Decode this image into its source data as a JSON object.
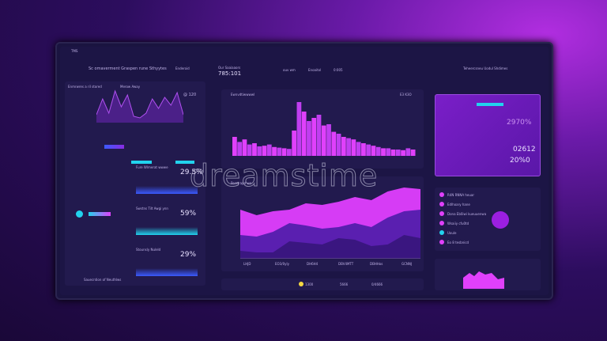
{
  "window": {
    "title": "TMS"
  },
  "header": {
    "title": "Sc omaverment Graspen rune Sthyytes",
    "select": "Enderoid",
    "stat_title": "Our Saaiaaors",
    "stat_value": "785:101",
    "kpis": [
      "ouv wm",
      "Enoaitol",
      "0:005"
    ]
  },
  "left": {
    "chart_title": "Enmrwres a ril stored",
    "chart_sub": "Merow Away",
    "value": "@ 120",
    "bottom_label": "Sauecntion of Neuthlws"
  },
  "cards": [
    {
      "title": "Fure Wlmerat wwwe",
      "value": "29.5%"
    },
    {
      "title": "Swstns Tilt Awgi ynn",
      "value": "59%"
    },
    {
      "title": "Stounsly Nuleld",
      "value": "29%"
    }
  ],
  "main": {
    "chart1_title": "Ewnvdtiwwwwl",
    "chart1_value": "E3 K3O",
    "chart2_title": "Perstrapd wn",
    "x_ticks": [
      "LHJD",
      "EO3/0yly",
      "DH6H4",
      "DBV4MTT",
      "DBHHos",
      "GCNNJ"
    ],
    "footer": [
      "1300",
      "5666",
      "0/4666"
    ]
  },
  "right": {
    "title": "Teheercsneu Uodul Shdimes",
    "card_values": [
      "02612",
      "20%0",
      "2970%"
    ],
    "list": [
      "R4N RNNA heuar",
      "Edlhoary hane",
      "Dona Eb0iwi kueuuenwa",
      "Wsaiiy cfu0td",
      "Uoule",
      "Eo 8 tesbnicd"
    ]
  },
  "watermark": "dreamstime",
  "chart_data": {
    "type": "area",
    "bars": [
      30,
      22,
      26,
      18,
      20,
      15,
      16,
      18,
      14,
      13,
      12,
      11,
      40,
      85,
      70,
      55,
      60,
      65,
      48,
      50,
      38,
      35,
      30,
      28,
      26,
      22,
      20,
      18,
      16,
      14,
      12,
      12,
      10,
      10,
      9,
      12,
      10
    ],
    "area_series": [
      [
        62,
        55,
        60,
        62,
        70,
        68,
        72,
        78,
        74,
        85,
        90,
        88
      ],
      [
        30,
        28,
        34,
        45,
        42,
        38,
        40,
        45,
        40,
        52,
        60,
        62
      ],
      [
        10,
        8,
        8,
        22,
        20,
        18,
        26,
        24,
        16,
        18,
        30,
        26
      ]
    ],
    "left_line": [
      10,
      30,
      12,
      40,
      20,
      35,
      8,
      6,
      12,
      30,
      18,
      32,
      22,
      38,
      10
    ],
    "colors": {
      "accent": "#e040fb",
      "purple": "#8a2be2",
      "cyan": "#22d3ee"
    }
  }
}
